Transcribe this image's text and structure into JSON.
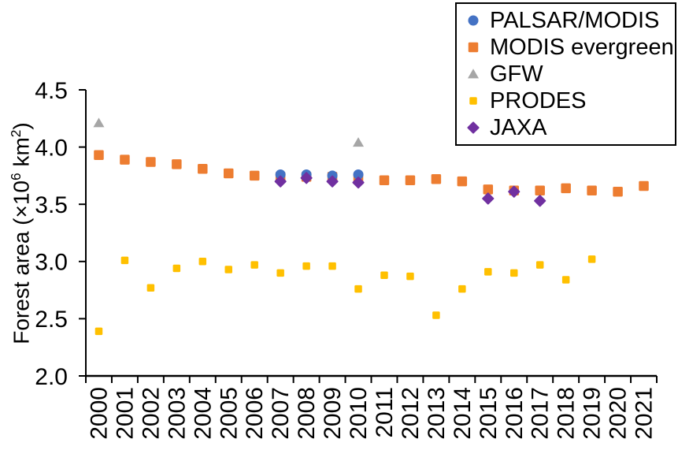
{
  "chart_data": {
    "type": "scatter",
    "title": "",
    "xlabel": "",
    "ylabel": {
      "prefix": "Forest area (×10",
      "sup1": "6",
      "mid": " km",
      "sup2": "2",
      "suffix": ")"
    },
    "ylim": [
      2.0,
      4.5
    ],
    "yticks": [
      "2.0",
      "2.5",
      "3.0",
      "3.5",
      "4.0",
      "4.5"
    ],
    "categories": [
      "2000",
      "2001",
      "2002",
      "2003",
      "2004",
      "2005",
      "2006",
      "2007",
      "2008",
      "2009",
      "2010",
      "2011",
      "2012",
      "2013",
      "2014",
      "2015",
      "2016",
      "2017",
      "2018",
      "2019",
      "2020",
      "2021"
    ],
    "grid": false,
    "legend_position": "top-right",
    "draw_order": [
      1,
      0,
      2,
      3,
      4
    ],
    "series": [
      {
        "name": "PALSAR/MODIS",
        "marker": "circle",
        "color": "#4472C4",
        "size": 13,
        "points": [
          [
            2007,
            3.76
          ],
          [
            2008,
            3.76
          ],
          [
            2009,
            3.75
          ],
          [
            2010,
            3.76
          ]
        ]
      },
      {
        "name": "MODIS evergreen",
        "marker": "square",
        "color": "#ED7D31",
        "size": 12.5,
        "points": [
          [
            2000,
            3.93
          ],
          [
            2001,
            3.89
          ],
          [
            2002,
            3.87
          ],
          [
            2003,
            3.85
          ],
          [
            2004,
            3.81
          ],
          [
            2005,
            3.77
          ],
          [
            2006,
            3.75
          ],
          [
            2007,
            3.74
          ],
          [
            2008,
            3.74
          ],
          [
            2009,
            3.74
          ],
          [
            2010,
            3.73
          ],
          [
            2011,
            3.71
          ],
          [
            2012,
            3.71
          ],
          [
            2013,
            3.72
          ],
          [
            2014,
            3.7
          ],
          [
            2015,
            3.63
          ],
          [
            2016,
            3.62
          ],
          [
            2017,
            3.62
          ],
          [
            2018,
            3.64
          ],
          [
            2019,
            3.62
          ],
          [
            2020,
            3.61
          ],
          [
            2021,
            3.66
          ]
        ]
      },
      {
        "name": "GFW",
        "marker": "triangle",
        "color": "#A6A6A6",
        "size": 14,
        "points": [
          [
            2000,
            4.21
          ],
          [
            2010,
            4.04
          ]
        ]
      },
      {
        "name": "PRODES",
        "marker": "square",
        "color": "#FFC000",
        "size": 9.5,
        "points": [
          [
            2000,
            2.39
          ],
          [
            2001,
            3.01
          ],
          [
            2002,
            2.77
          ],
          [
            2003,
            2.94
          ],
          [
            2004,
            3.0
          ],
          [
            2005,
            2.93
          ],
          [
            2006,
            2.97
          ],
          [
            2007,
            2.9
          ],
          [
            2008,
            2.96
          ],
          [
            2009,
            2.96
          ],
          [
            2010,
            2.76
          ],
          [
            2011,
            2.88
          ],
          [
            2012,
            2.87
          ],
          [
            2013,
            2.53
          ],
          [
            2014,
            2.76
          ],
          [
            2015,
            2.91
          ],
          [
            2016,
            2.9
          ],
          [
            2017,
            2.97
          ],
          [
            2018,
            2.84
          ],
          [
            2019,
            3.02
          ]
        ]
      },
      {
        "name": "JAXA",
        "marker": "diamond",
        "color": "#7030A0",
        "size": 16,
        "points": [
          [
            2007,
            3.7
          ],
          [
            2008,
            3.73
          ],
          [
            2009,
            3.7
          ],
          [
            2010,
            3.69
          ],
          [
            2015,
            3.55
          ],
          [
            2016,
            3.61
          ],
          [
            2017,
            3.53
          ]
        ]
      }
    ]
  }
}
